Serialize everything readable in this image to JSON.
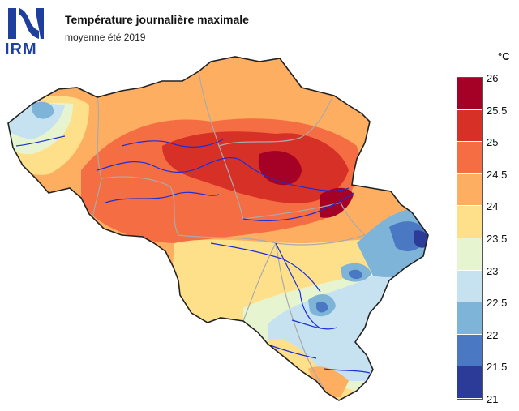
{
  "header": {
    "logo_text": "IRM",
    "title": "Température journalière maximale",
    "subtitle": "moyenne été 2019"
  },
  "legend": {
    "unit": "°C",
    "ticks": [
      "26",
      "25.5",
      "25",
      "24.5",
      "24",
      "23.5",
      "23",
      "22.5",
      "22",
      "21.5",
      "21"
    ],
    "colors": [
      "#a50026",
      "#d73027",
      "#f46d43",
      "#fdae61",
      "#fee08b",
      "#e6f5d0",
      "#c6e2f0",
      "#7fb4d9",
      "#4a78c2",
      "#2c3a98"
    ]
  },
  "map": {
    "country": "Belgique",
    "colors": {
      "border": "#222222",
      "rivers": "#1a2fd6",
      "provinces": "#aaaaaa"
    }
  }
}
